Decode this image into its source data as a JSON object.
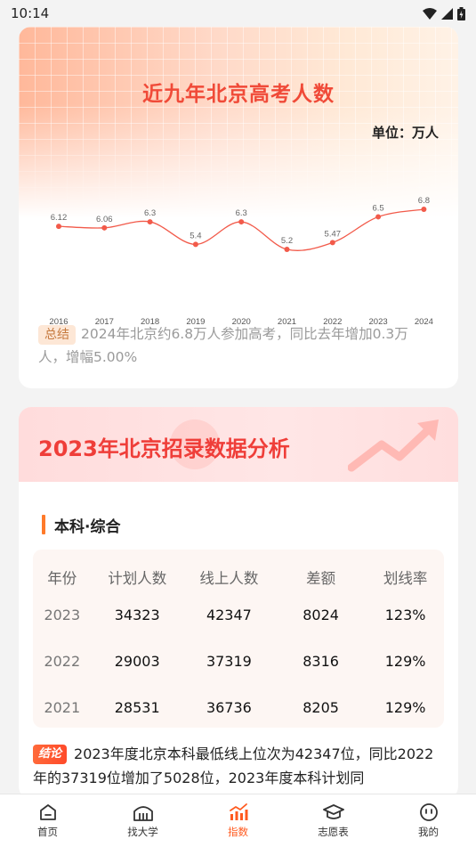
{
  "status_bar": {
    "time": "10:14"
  },
  "card1": {
    "title": "近九年北京高考人数",
    "unit": "单位：万人",
    "summary_tag": "总结",
    "summary_text": "2024年北京约6.8万人参加高考，同比去年增加0.3万人，增幅5.00%"
  },
  "chart_data": {
    "type": "line",
    "categories": [
      "2016",
      "2017",
      "2018",
      "2019",
      "2020",
      "2021",
      "2022",
      "2023",
      "2024"
    ],
    "values": [
      6.12,
      6.06,
      6.3,
      5.4,
      6.3,
      5.2,
      5.47,
      6.5,
      6.8
    ],
    "data_labels": [
      "6.12",
      "6.06",
      "6.3",
      "5.4",
      "6.3",
      "5.2",
      "5.47",
      "6.5",
      "6.8"
    ],
    "title": "近九年北京高考人数",
    "ylabel": "单位：万人",
    "line_color": "#f25a4a",
    "smooth": true,
    "grid": false
  },
  "card2": {
    "title": "2023年北京招录数据分析",
    "section_title": "本科·综合",
    "table": {
      "headers": [
        "年份",
        "计划人数",
        "线上人数",
        "差额",
        "划线率"
      ],
      "rows": [
        [
          "2023",
          "34323",
          "42347",
          "8024",
          "123%"
        ],
        [
          "2022",
          "29003",
          "37319",
          "8316",
          "129%"
        ],
        [
          "2021",
          "28531",
          "36736",
          "8205",
          "129%"
        ]
      ]
    },
    "conclusion_tag": "结论",
    "conclusion_text": "2023年度北京本科最低线上位次为42347位，同比2022年的37319位增加了5028位，2023年度本科计划同"
  },
  "bottom_nav": {
    "items": [
      {
        "label": "首页",
        "icon": "home-icon"
      },
      {
        "label": "找大学",
        "icon": "university-icon"
      },
      {
        "label": "指数",
        "icon": "chart-index-icon",
        "active": true
      },
      {
        "label": "志愿表",
        "icon": "graduation-cap-icon"
      },
      {
        "label": "我的",
        "icon": "profile-face-icon"
      }
    ]
  },
  "colors": {
    "accent": "#ff5a1f",
    "title_red": "#f04a38",
    "chart_line": "#f25a4a"
  }
}
